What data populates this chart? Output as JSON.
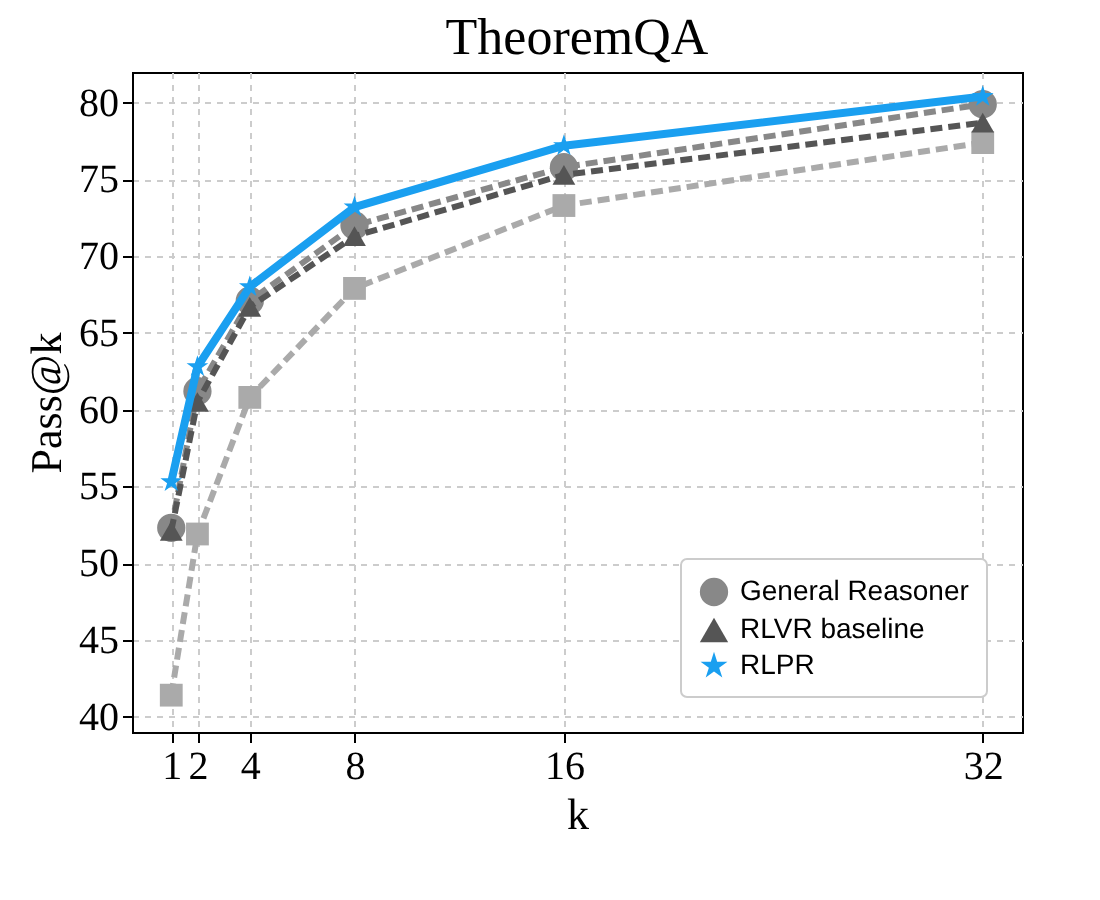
{
  "chart_data": {
    "type": "line",
    "title": "TheoremQA",
    "xlabel": "k",
    "ylabel": "Pass@k",
    "x": [
      1,
      2,
      4,
      8,
      16,
      32
    ],
    "xlim": [
      -0.5,
      33.5
    ],
    "xticks": [
      1,
      2,
      4,
      8,
      16,
      32
    ],
    "ylim": [
      39,
      82
    ],
    "yticks": [
      40,
      45,
      50,
      55,
      60,
      65,
      70,
      75,
      80
    ],
    "grid": true,
    "legend": "bottom right",
    "series": [
      {
        "color": "#aaaaaa",
        "marker": "square",
        "line_style": "dashed",
        "values": [
          41.4,
          51.9,
          60.8,
          67.9,
          73.3,
          77.4
        ]
      },
      {
        "name": "General Reasoner",
        "color": "#888888",
        "marker": "circle",
        "line_style": "dashed",
        "values": [
          52.3,
          61.2,
          67.1,
          72.0,
          75.8,
          79.9
        ]
      },
      {
        "name": "RLVR baseline",
        "color": "#555555",
        "marker": "triangle",
        "line_style": "dashed",
        "values": [
          52.1,
          60.5,
          66.7,
          71.3,
          75.3,
          78.7
        ]
      },
      {
        "name": "RLPR",
        "color": "#1a9ff0",
        "marker": "star",
        "line_style": "solid",
        "values": [
          55.3,
          62.8,
          68.0,
          73.2,
          77.2,
          80.4
        ]
      }
    ]
  }
}
